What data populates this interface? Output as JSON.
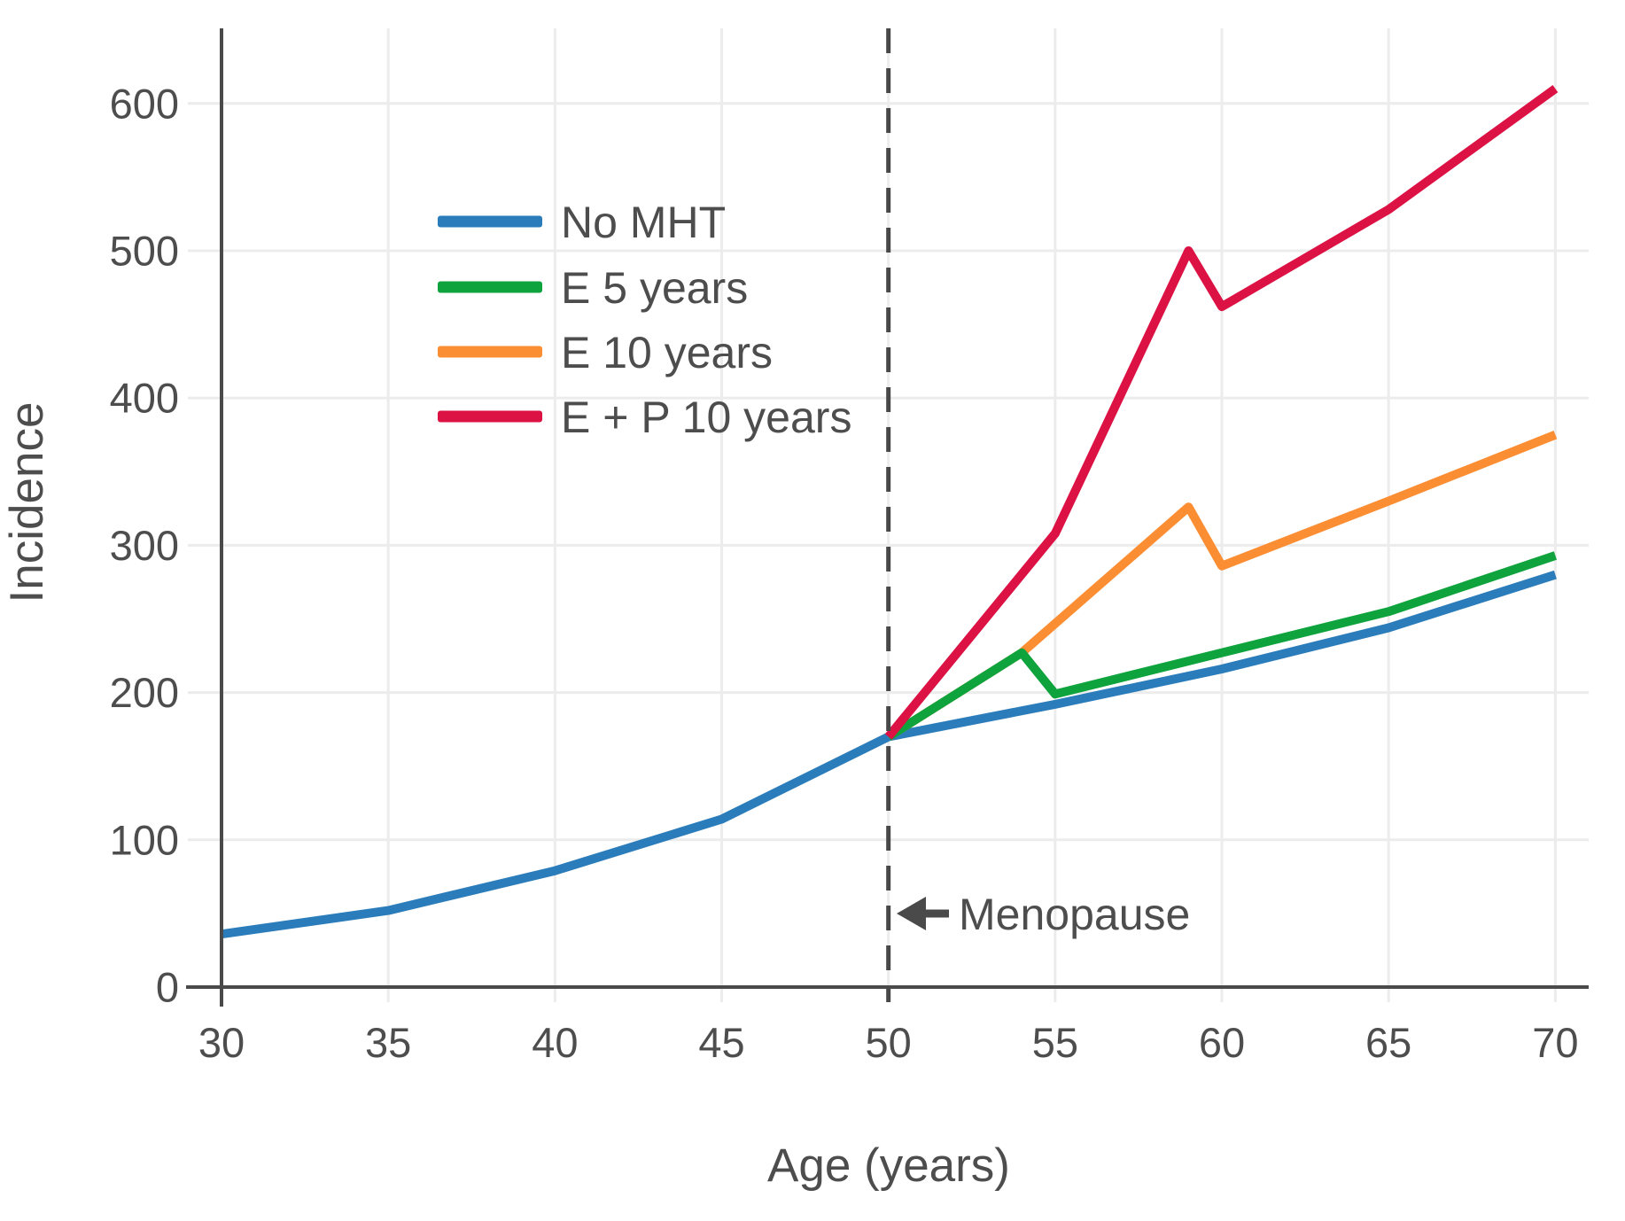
{
  "chart_data": {
    "type": "line",
    "title": "",
    "xlabel": "Age (years)",
    "ylabel": "Incidence",
    "xlim": [
      30,
      71
    ],
    "ylim": [
      0,
      651
    ],
    "xticks": [
      30,
      35,
      40,
      45,
      50,
      55,
      60,
      65,
      70
    ],
    "yticks": [
      0,
      100,
      200,
      300,
      400,
      500,
      600
    ],
    "grid": true,
    "legend_position": "upper-left-inside",
    "draw_order": [
      0,
      2,
      1,
      3
    ],
    "vline": {
      "x": 50,
      "style": "dashed",
      "label": "Menopause"
    },
    "series": [
      {
        "name": "No MHT",
        "color": "#2b7cba",
        "points": [
          [
            30,
            36
          ],
          [
            35,
            52
          ],
          [
            40,
            79
          ],
          [
            45,
            114
          ],
          [
            50,
            170
          ],
          [
            55,
            192
          ],
          [
            60,
            216
          ],
          [
            65,
            244
          ],
          [
            70,
            280
          ]
        ]
      },
      {
        "name": "E 5 years",
        "color": "#0ea33c",
        "points": [
          [
            50,
            170
          ],
          [
            54,
            227
          ],
          [
            55,
            199
          ],
          [
            60,
            227
          ],
          [
            65,
            255
          ],
          [
            70,
            293
          ]
        ]
      },
      {
        "name": "E 10 years",
        "color": "#fb8d33",
        "points": [
          [
            50,
            170
          ],
          [
            54,
            227
          ],
          [
            59,
            326
          ],
          [
            60,
            286
          ],
          [
            65,
            330
          ],
          [
            70,
            375
          ]
        ]
      },
      {
        "name": "E + P 10 years",
        "color": "#dc1245",
        "points": [
          [
            50,
            170
          ],
          [
            55,
            308
          ],
          [
            59,
            500
          ],
          [
            60,
            462
          ],
          [
            65,
            528
          ],
          [
            70,
            610
          ]
        ]
      }
    ],
    "colors": {
      "axis": "#4a4a4a",
      "grid": "#ececec",
      "text": "#4d4d4d",
      "dashed_line": "#484848"
    }
  }
}
